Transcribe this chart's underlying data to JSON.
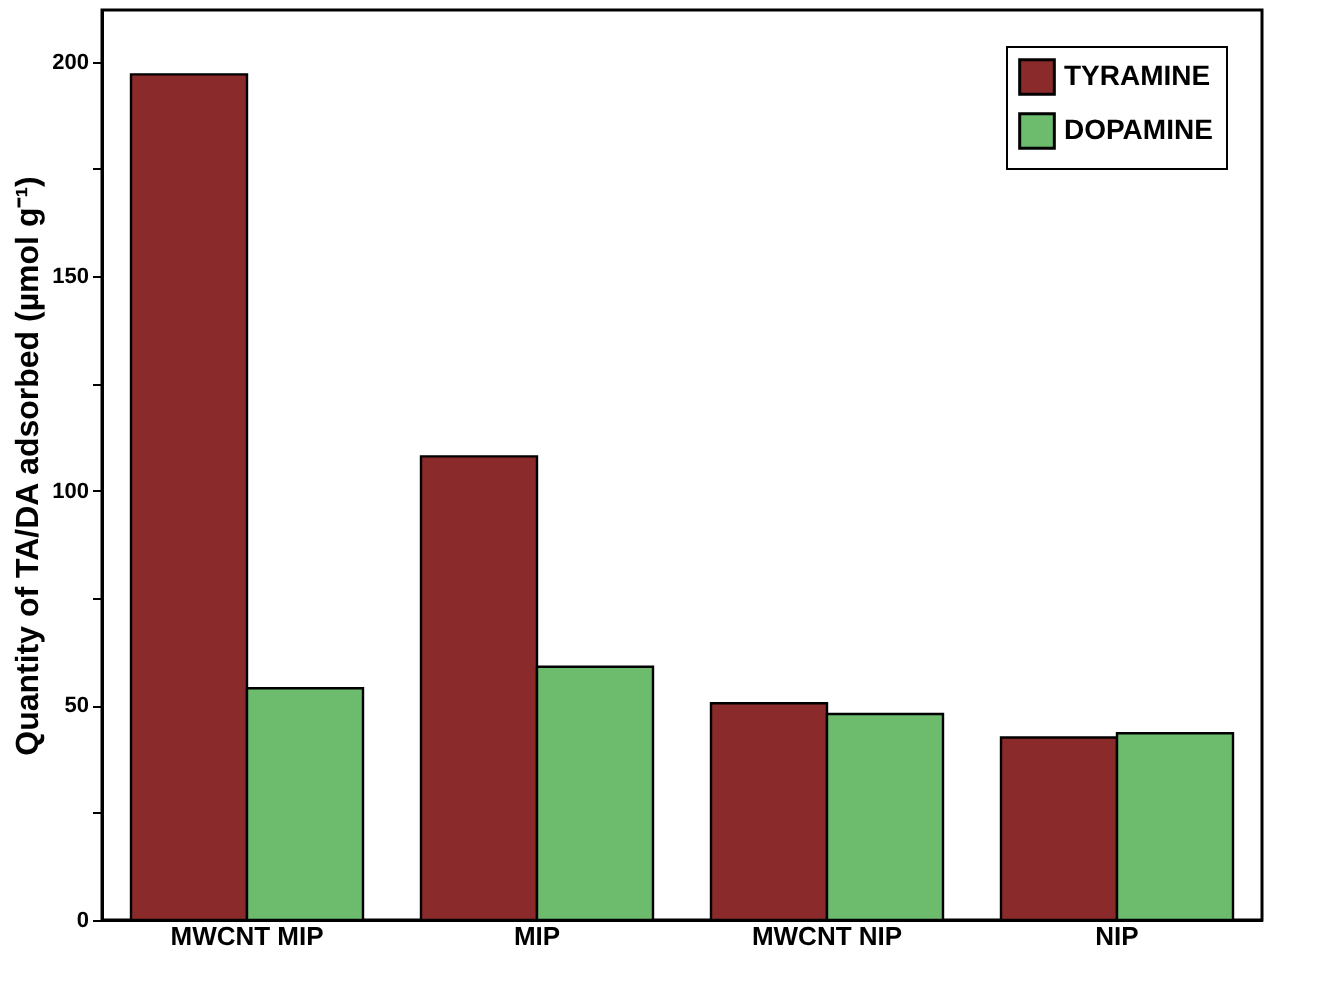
{
  "chart_data": {
    "type": "bar",
    "ylabel": "Quantity of TA/DA adsorbed (µmol g⁻¹)",
    "categories": [
      "MWCNT MIP",
      "MIP",
      "MWCNT NIP",
      "NIP"
    ],
    "series": [
      {
        "name": "TYRAMINE",
        "color": "#8b2a2a",
        "values": [
          197,
          108,
          50.5,
          42.5
        ]
      },
      {
        "name": "DOPAMINE",
        "color": "#6dbb6d",
        "values": [
          54,
          59,
          48,
          43.5
        ]
      }
    ],
    "ylim": [
      0,
      212
    ],
    "yticks": [
      0,
      {
        "value": 25,
        "label": null
      },
      50,
      {
        "value": 75,
        "label": null
      },
      100,
      {
        "value": 125,
        "label": null
      },
      150,
      {
        "value": 175,
        "label": null
      },
      200
    ],
    "grid": false,
    "legend": "top right"
  }
}
